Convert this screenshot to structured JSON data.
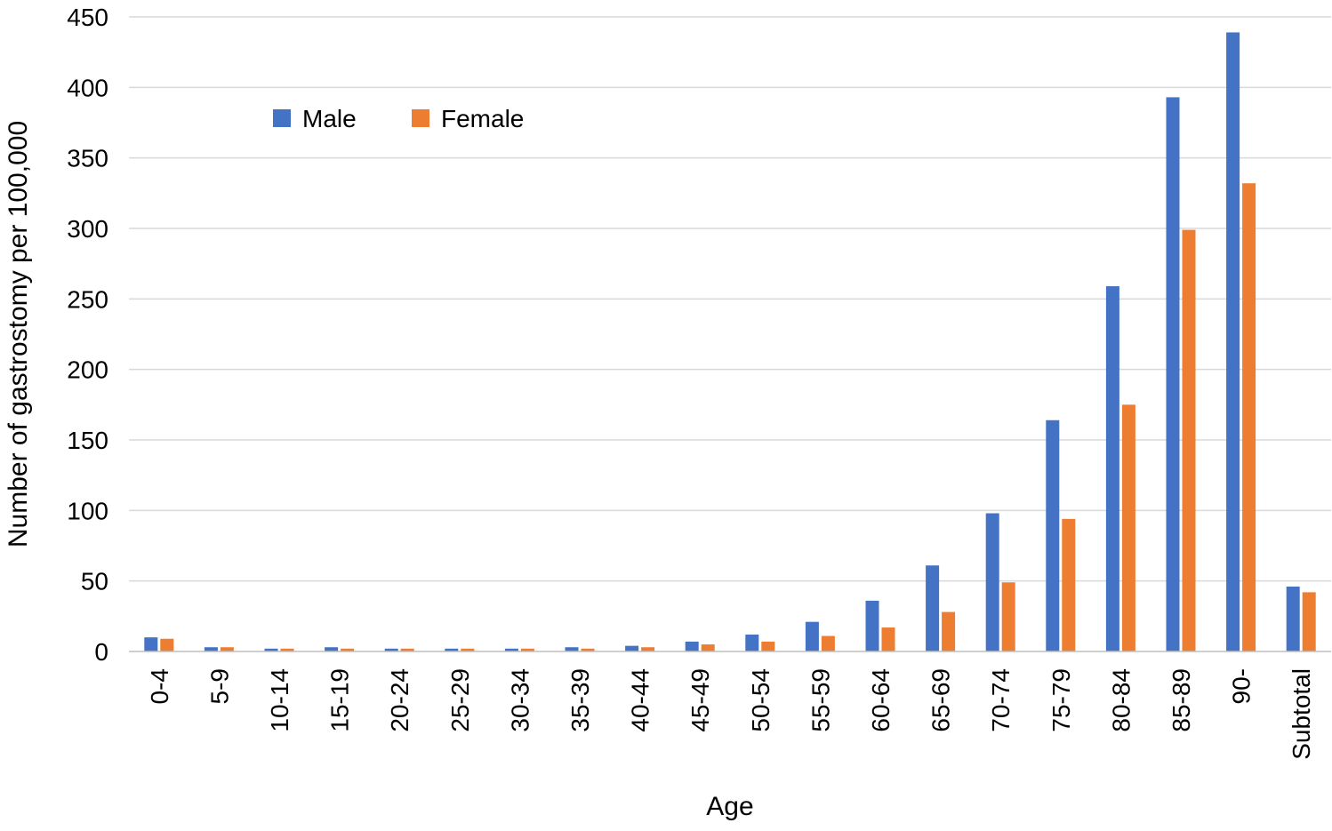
{
  "chart_data": {
    "type": "bar",
    "xlabel": "Age",
    "ylabel": "Number of gastrostomy per 100,000",
    "ylim": [
      0,
      450
    ],
    "yticks": [
      0,
      50,
      100,
      150,
      200,
      250,
      300,
      350,
      400,
      450
    ],
    "grid": true,
    "legend_position": "top-left",
    "categories": [
      "0-4",
      "5-9",
      "10-14",
      "15-19",
      "20-24",
      "25-29",
      "30-34",
      "35-39",
      "40-44",
      "45-49",
      "50-54",
      "55-59",
      "60-64",
      "65-69",
      "70-74",
      "75-79",
      "80-84",
      "85-89",
      "90-",
      "Subtotal"
    ],
    "series": [
      {
        "name": "Male",
        "color": "#4472C4",
        "values": [
          10,
          3,
          2,
          3,
          2,
          2,
          2,
          3,
          4,
          7,
          12,
          21,
          36,
          61,
          98,
          164,
          259,
          393,
          439,
          46
        ]
      },
      {
        "name": "Female",
        "color": "#ED7D31",
        "values": [
          9,
          3,
          2,
          2,
          2,
          2,
          2,
          2,
          3,
          5,
          7,
          11,
          17,
          28,
          49,
          94,
          175,
          299,
          332,
          42
        ]
      }
    ]
  }
}
